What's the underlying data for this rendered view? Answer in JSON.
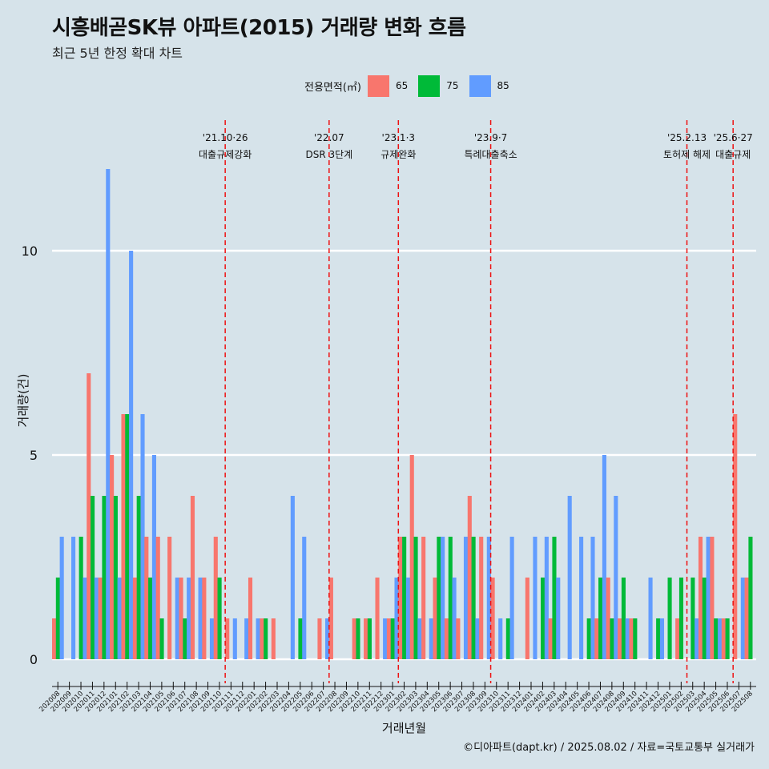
{
  "title": "시흥배곧SK뷰 아파트(2015) 거래량 변화 흐름",
  "subtitle": "최근 5년 한정 확대 차트",
  "caption": "©디아파트(dapt.kr) / 2025.08.02 / 자료=국토교통부 실거래가",
  "legend": {
    "title": "전용면적(㎡)",
    "items": [
      {
        "label": "65",
        "color": "#f8766d"
      },
      {
        "label": "75",
        "color": "#00ba38"
      },
      {
        "label": "85",
        "color": "#619cff"
      }
    ]
  },
  "chart_data": {
    "type": "bar",
    "xlabel": "거래년월",
    "ylabel": "거래량(건)",
    "ylim": [
      -0.5,
      12.5
    ],
    "yticks": [
      0,
      5,
      10
    ],
    "grid": true,
    "legend_position": "top",
    "categories": [
      "202008",
      "202009",
      "202010",
      "202011",
      "202012",
      "202101",
      "202102",
      "202103",
      "202104",
      "202105",
      "202106",
      "202107",
      "202108",
      "202109",
      "202110",
      "202111",
      "202112",
      "202201",
      "202202",
      "202203",
      "202204",
      "202205",
      "202206",
      "202207",
      "202208",
      "202209",
      "202210",
      "202211",
      "202212",
      "202301",
      "202302",
      "202303",
      "202304",
      "202305",
      "202306",
      "202307",
      "202308",
      "202309",
      "202310",
      "202311",
      "202312",
      "202401",
      "202402",
      "202403",
      "202404",
      "202405",
      "202406",
      "202407",
      "202408",
      "202409",
      "202410",
      "202411",
      "202412",
      "202501",
      "202502",
      "202503",
      "202504",
      "202505",
      "202506",
      "202507",
      "202508"
    ],
    "series": [
      {
        "name": "65",
        "color": "#f8766d",
        "values": [
          1,
          0,
          0,
          7,
          2,
          5,
          6,
          2,
          3,
          3,
          3,
          2,
          4,
          2,
          3,
          1,
          0,
          2,
          1,
          1,
          0,
          0,
          0,
          1,
          2,
          0,
          1,
          1,
          2,
          1,
          3,
          5,
          3,
          2,
          1,
          1,
          4,
          3,
          2,
          0,
          0,
          2,
          0,
          1,
          0,
          0,
          0,
          1,
          2,
          1,
          1,
          0,
          0,
          0,
          1,
          0,
          3,
          3,
          1,
          6,
          2
        ]
      },
      {
        "name": "75",
        "color": "#00ba38",
        "values": [
          2,
          0,
          3,
          4,
          4,
          4,
          6,
          4,
          2,
          1,
          0,
          1,
          0,
          0,
          2,
          0,
          0,
          0,
          1,
          0,
          0,
          1,
          0,
          0,
          0,
          0,
          1,
          1,
          0,
          1,
          3,
          3,
          0,
          3,
          3,
          0,
          3,
          0,
          0,
          1,
          0,
          0,
          2,
          3,
          0,
          0,
          1,
          2,
          1,
          2,
          1,
          0,
          1,
          2,
          2,
          2,
          2,
          1,
          1,
          0,
          3
        ]
      },
      {
        "name": "85",
        "color": "#619cff",
        "values": [
          3,
          3,
          2,
          2,
          12,
          2,
          10,
          6,
          5,
          0,
          2,
          2,
          2,
          1,
          0,
          1,
          1,
          1,
          0,
          0,
          4,
          3,
          0,
          1,
          0,
          0,
          0,
          0,
          1,
          2,
          2,
          1,
          1,
          3,
          2,
          3,
          1,
          3,
          1,
          3,
          0,
          3,
          3,
          2,
          4,
          3,
          3,
          5,
          4,
          1,
          0,
          2,
          1,
          0,
          0,
          1,
          3,
          1,
          0,
          2,
          0
        ]
      }
    ],
    "annotations": [
      {
        "line1": "'21.10·26",
        "line2": "대출규제강화",
        "after": "202110"
      },
      {
        "line1": "'22.07",
        "line2": "DSR 3단계",
        "after": "202207"
      },
      {
        "line1": "'23.1·3",
        "line2": "규제완화",
        "after": "202301"
      },
      {
        "line1": "'23.9·7",
        "line2": "특례대출축소",
        "after": "202309"
      },
      {
        "line1": "'25.2.13",
        "line2": "토허제 해제",
        "after": "202502"
      },
      {
        "line1": "'25.6·27",
        "line2": "대출규제",
        "after": "202506"
      }
    ]
  }
}
